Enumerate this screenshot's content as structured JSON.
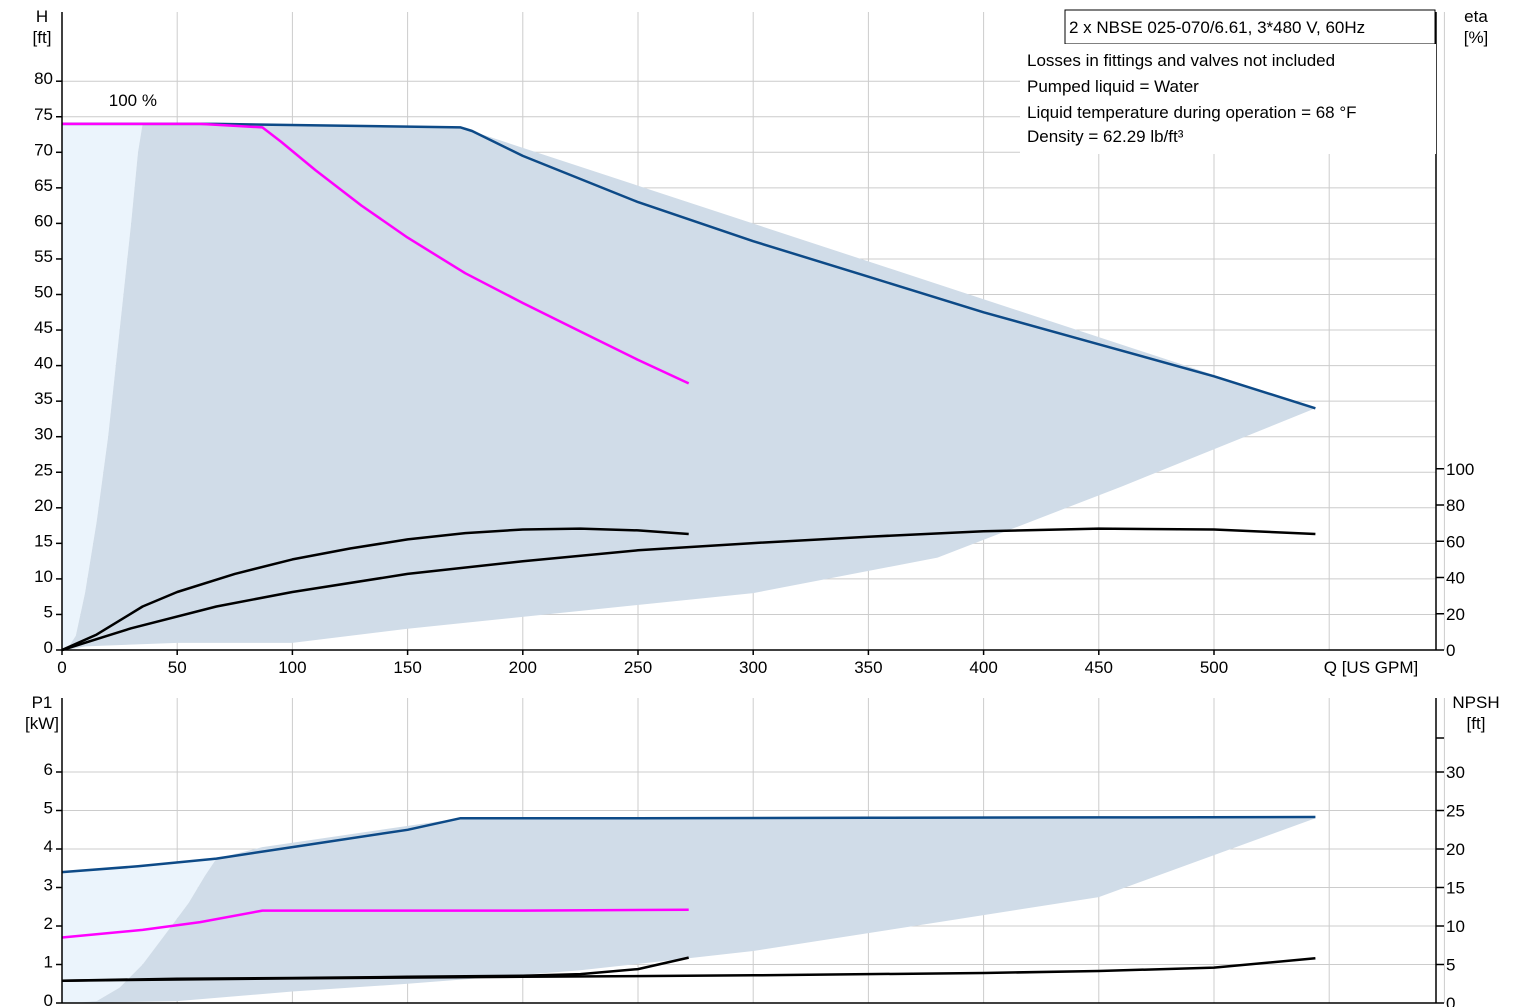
{
  "info_box": {
    "title": "2 x NBSE 025-070/6.61, 3*480 V, 60Hz",
    "notes": [
      "Losses in fittings and valves not included",
      "Pumped liquid = Water",
      "Liquid temperature during operation = 68 °F",
      "Density = 62.29 lb/ft³"
    ]
  },
  "colors": {
    "grid": "#cccccc",
    "envelope_fill": "#d0dce8",
    "light_fill": "#ebf4fc",
    "blue_curve": "#0d4a87",
    "magenta_curve": "#ff00ff",
    "black_curve": "#000000"
  },
  "chart_data": [
    {
      "type": "line",
      "xlabel": "Q [US GPM]",
      "ylabel": "H\n[ft]",
      "y2label": "eta\n[%]",
      "xlim": [
        0,
        600
      ],
      "ylim": [
        0,
        90
      ],
      "y2lim": [
        0,
        100
      ],
      "x_ticks": [
        0,
        50,
        100,
        150,
        200,
        250,
        300,
        350,
        400,
        450,
        500
      ],
      "y_ticks": [
        0,
        5,
        10,
        15,
        20,
        25,
        30,
        35,
        40,
        45,
        50,
        55,
        60,
        65,
        70,
        75,
        80
      ],
      "y2_ticks": [
        0,
        20,
        40,
        60,
        80,
        100
      ],
      "grid": true,
      "annotations": [
        {
          "text": "100 %",
          "x": 42,
          "y": 76.5
        }
      ],
      "series": [
        {
          "role": "envelope_light",
          "axis": "left",
          "points": [
            [
              0,
              0
            ],
            [
              0,
              74
            ],
            [
              35,
              74
            ],
            [
              33,
              70
            ],
            [
              30,
              60
            ],
            [
              25,
              45
            ],
            [
              20,
              30
            ],
            [
              15,
              18
            ],
            [
              10,
              8
            ],
            [
              6,
              2
            ],
            [
              2,
              0
            ]
          ]
        },
        {
          "role": "envelope",
          "axis": "left",
          "points": [
            [
              2,
              0
            ],
            [
              6,
              2
            ],
            [
              10,
              8
            ],
            [
              15,
              18
            ],
            [
              20,
              30
            ],
            [
              25,
              45
            ],
            [
              30,
              60
            ],
            [
              33,
              70
            ],
            [
              35,
              74
            ],
            [
              87,
              74
            ],
            [
              173,
              73.5
            ],
            [
              544,
              34
            ],
            [
              460,
              23
            ],
            [
              380,
              13
            ],
            [
              300,
              8
            ],
            [
              225,
              5.5
            ],
            [
              150,
              3
            ],
            [
              100,
              1
            ],
            [
              50,
              1
            ],
            [
              10,
              0.5
            ]
          ]
        },
        {
          "role": "qh_parallel",
          "axis": "left",
          "points": [
            [
              0,
              74
            ],
            [
              67,
              74
            ],
            [
              173,
              73.5
            ],
            [
              178,
              73
            ],
            [
              200,
              69.5
            ],
            [
              250,
              63
            ],
            [
              300,
              57.5
            ],
            [
              350,
              52.5
            ],
            [
              400,
              47.5
            ],
            [
              450,
              43
            ],
            [
              500,
              38.5
            ],
            [
              544,
              34
            ]
          ]
        },
        {
          "role": "qh_single",
          "axis": "left",
          "points": [
            [
              0,
              74
            ],
            [
              35,
              74
            ],
            [
              60,
              74
            ],
            [
              87,
              73.5
            ],
            [
              95,
              71.5
            ],
            [
              110,
              67.5
            ],
            [
              130,
              62.5
            ],
            [
              150,
              58
            ],
            [
              175,
              53
            ],
            [
              200,
              48.8
            ],
            [
              225,
              44.8
            ],
            [
              250,
              40.8
            ],
            [
              272,
              37.5
            ]
          ]
        },
        {
          "role": "eta_single",
          "axis": "right",
          "points": [
            [
              0,
              0
            ],
            [
              15,
              8.5
            ],
            [
              35,
              24
            ],
            [
              50,
              32
            ],
            [
              75,
              42
            ],
            [
              100,
              50
            ],
            [
              125,
              56
            ],
            [
              150,
              61
            ],
            [
              175,
              64.5
            ],
            [
              200,
              66.5
            ],
            [
              225,
              67
            ],
            [
              250,
              66
            ],
            [
              272,
              64
            ]
          ]
        },
        {
          "role": "eta_parallel",
          "axis": "right",
          "points": [
            [
              0,
              0
            ],
            [
              30,
              12
            ],
            [
              67,
              24
            ],
            [
              100,
              32
            ],
            [
              150,
              42
            ],
            [
              200,
              49
            ],
            [
              250,
              55
            ],
            [
              300,
              59
            ],
            [
              350,
              62.5
            ],
            [
              400,
              65.5
            ],
            [
              450,
              67
            ],
            [
              500,
              66.5
            ],
            [
              544,
              64
            ]
          ]
        }
      ]
    },
    {
      "type": "line",
      "xlabel": "",
      "ylabel": "P1\n[kW]",
      "y2label": "NPSH\n[ft]",
      "xlim": [
        0,
        600
      ],
      "ylim": [
        0,
        7
      ],
      "y2lim": [
        0,
        35
      ],
      "x_ticks": [
        0,
        50,
        100,
        150,
        200,
        250,
        300,
        350,
        400,
        450,
        500
      ],
      "y_ticks": [
        0,
        1,
        2,
        3,
        4,
        5,
        6
      ],
      "y2_ticks": [
        0,
        5,
        10,
        15,
        20,
        25,
        30
      ],
      "grid": true,
      "series": [
        {
          "role": "envelope_light",
          "axis": "left",
          "points": [
            [
              0,
              0
            ],
            [
              0,
              3.4
            ],
            [
              30,
              3.55
            ],
            [
              67,
              3.75
            ],
            [
              62,
              3.3
            ],
            [
              55,
              2.6
            ],
            [
              45,
              1.8
            ],
            [
              35,
              1.0
            ],
            [
              25,
              0.4
            ],
            [
              15,
              0.05
            ],
            [
              5,
              0
            ]
          ]
        },
        {
          "role": "envelope",
          "axis": "left",
          "points": [
            [
              5,
              0
            ],
            [
              15,
              0.05
            ],
            [
              25,
              0.4
            ],
            [
              35,
              1.0
            ],
            [
              45,
              1.8
            ],
            [
              55,
              2.6
            ],
            [
              62,
              3.3
            ],
            [
              67,
              3.75
            ],
            [
              87,
              4.05
            ],
            [
              173,
              4.8
            ],
            [
              544,
              4.8
            ],
            [
              450,
              2.75
            ],
            [
              375,
              2.05
            ],
            [
              300,
              1.35
            ],
            [
              225,
              0.85
            ],
            [
              150,
              0.5
            ],
            [
              100,
              0.3
            ],
            [
              50,
              0.05
            ]
          ]
        },
        {
          "role": "p1_parallel",
          "axis": "left",
          "points": [
            [
              0,
              3.4
            ],
            [
              33,
              3.55
            ],
            [
              67,
              3.75
            ],
            [
              100,
              4.05
            ],
            [
              150,
              4.5
            ],
            [
              173,
              4.8
            ],
            [
              250,
              4.8
            ],
            [
              350,
              4.81
            ],
            [
              450,
              4.82
            ],
            [
              544,
              4.83
            ]
          ]
        },
        {
          "role": "p1_single",
          "axis": "left",
          "points": [
            [
              0,
              1.7
            ],
            [
              35,
              1.9
            ],
            [
              60,
              2.1
            ],
            [
              87,
              2.4
            ],
            [
              150,
              2.4
            ],
            [
              200,
              2.4
            ],
            [
              272,
              2.42
            ]
          ]
        },
        {
          "role": "npsh_single",
          "axis": "right",
          "points": [
            [
              0,
              2.9
            ],
            [
              50,
              3.15
            ],
            [
              100,
              3.25
            ],
            [
              150,
              3.4
            ],
            [
              200,
              3.55
            ],
            [
              225,
              3.75
            ],
            [
              250,
              4.4
            ],
            [
              272,
              5.9
            ]
          ]
        },
        {
          "role": "npsh_parallel",
          "axis": "right",
          "points": [
            [
              0,
              2.9
            ],
            [
              100,
              3.2
            ],
            [
              200,
              3.4
            ],
            [
              300,
              3.6
            ],
            [
              400,
              3.9
            ],
            [
              450,
              4.15
            ],
            [
              500,
              4.6
            ],
            [
              544,
              5.8
            ]
          ]
        }
      ]
    }
  ]
}
